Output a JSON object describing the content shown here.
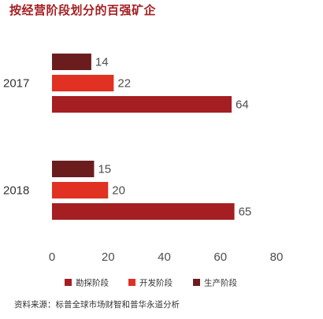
{
  "title": "按经营阶段划分的百强矿企",
  "source": "资料来源：标普全球市场财智和普华永道分析",
  "chart_data": {
    "type": "bar",
    "orientation": "horizontal",
    "categories": [
      "2017",
      "2018"
    ],
    "series": [
      {
        "name": "生产阶段",
        "color": "#6b1d1e",
        "values": [
          14,
          15
        ]
      },
      {
        "name": "开发阶段",
        "color": "#e03123",
        "values": [
          22,
          20
        ]
      },
      {
        "name": "勘探阶段",
        "color": "#a51e22",
        "values": [
          64,
          65
        ]
      }
    ],
    "legend_order": [
      "勘探阶段",
      "开发阶段",
      "生产阶段"
    ],
    "xlim": [
      0,
      80
    ],
    "xticks": [
      "0",
      "20",
      "40",
      "60",
      "80"
    ],
    "data_labels": true,
    "grid": false,
    "legend_position": "bottom"
  }
}
